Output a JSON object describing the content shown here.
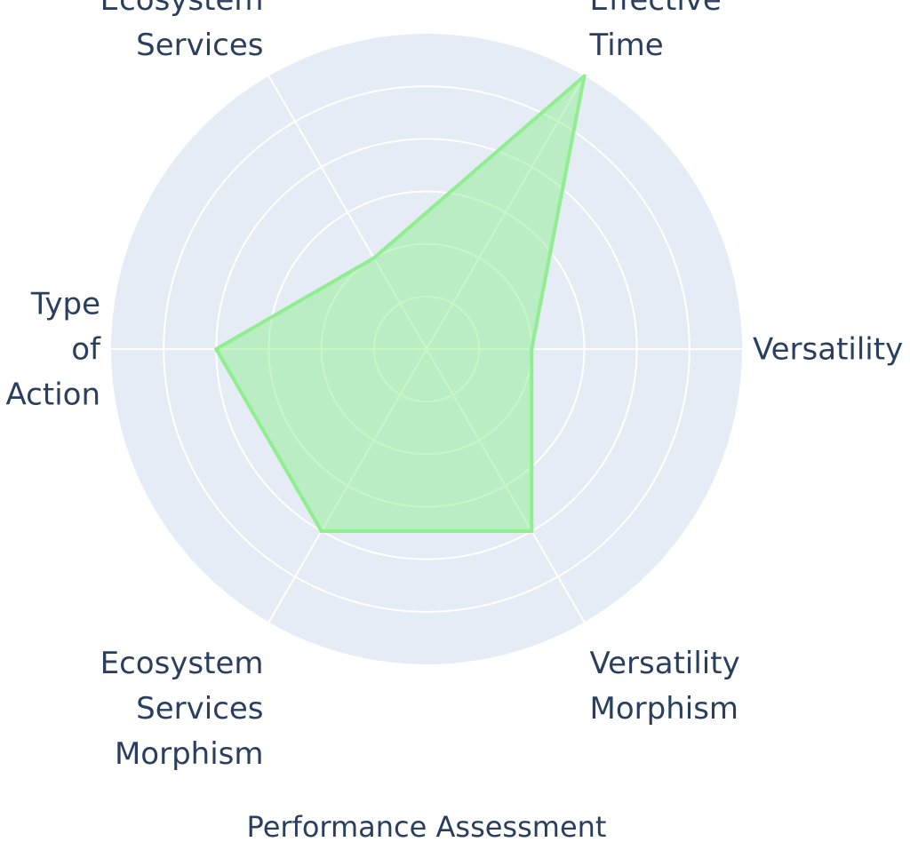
{
  "chart_data": {
    "type": "radar",
    "title": "Performance Assessment",
    "axes": [
      {
        "label_lines": [
          "Versatility"
        ]
      },
      {
        "label_lines": [
          "Effective",
          "Time"
        ]
      },
      {
        "label_lines": [
          "Ecosystem",
          "Services"
        ]
      },
      {
        "label_lines": [
          "Type",
          "of",
          "Action"
        ]
      },
      {
        "label_lines": [
          "Ecosystem",
          "Services",
          "Morphism"
        ]
      },
      {
        "label_lines": [
          "Versatility",
          "Morphism"
        ]
      }
    ],
    "series": [
      {
        "values": [
          2,
          6,
          2,
          4,
          4,
          4
        ]
      }
    ],
    "r_range": [
      0,
      6
    ],
    "grid_levels": [
      1,
      2,
      3,
      4,
      5,
      6
    ],
    "grid": true,
    "colors": {
      "background": "#e5ecf6",
      "grid": "#ffffff",
      "series_line": "#90ee90",
      "series_fill": "#90ee90",
      "text": "#2a3f5f"
    }
  }
}
